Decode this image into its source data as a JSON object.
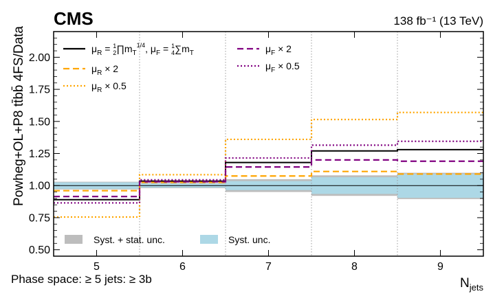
{
  "chart_data": {
    "type": "line",
    "title": "CMS",
    "lumi_label": "138 fb⁻¹ (13 TeV)",
    "ylabel": "Powheg+OL+P8 tt̄bb̄ 4FS/Data",
    "xlabel": "N",
    "xlabel_sub": "jets",
    "footnote": "Phase space:  ≥ 5 jets:  ≥ 3b",
    "categories": [
      "5",
      "6",
      "7",
      "8",
      "9"
    ],
    "x_edges": [
      4.5,
      5.5,
      6.5,
      7.5,
      8.5,
      9.5
    ],
    "ylim": [
      0.45,
      2.2
    ],
    "yticks": [
      0.5,
      0.75,
      1.0,
      1.25,
      1.5,
      1.75,
      2.0
    ],
    "ytick_labels": [
      "0.50",
      "0.75",
      "1.00",
      "1.25",
      "1.50",
      "1.75",
      "2.00"
    ],
    "grid": "vertical dotted lines at bin edges",
    "reference_line": 1.0,
    "bands": [
      {
        "name": "Syst. + stat. unc.",
        "color": "#bdbdbd",
        "low": [
          0.97,
          0.98,
          0.95,
          0.92,
          0.895
        ],
        "high": [
          1.03,
          1.02,
          1.05,
          1.08,
          1.1
        ]
      },
      {
        "name": "Syst. unc.",
        "color": "#add8e6",
        "low": [
          0.975,
          0.985,
          0.965,
          0.935,
          0.905
        ],
        "high": [
          1.025,
          1.015,
          1.035,
          1.065,
          1.09
        ]
      }
    ],
    "series": [
      {
        "name_main": "μ",
        "name_parts": [
          "R",
          " = ",
          "1",
          "2",
          "∏",
          "m",
          "T",
          "1/4",
          ", μ",
          "F",
          " = ",
          "1",
          "4",
          "∑",
          "m",
          "T"
        ],
        "style": "solid",
        "color": "#000000",
        "values": [
          0.89,
          1.035,
          1.18,
          1.27,
          1.28
        ]
      },
      {
        "name_main": "μ",
        "name_sub": "R",
        "name_suffix": " × 2",
        "style": "dashed",
        "color": "#ffa500",
        "values": [
          0.96,
          1.025,
          1.075,
          1.11,
          1.09
        ]
      },
      {
        "name_main": "μ",
        "name_sub": "R",
        "name_suffix": " × 0.5",
        "style": "dotted",
        "color": "#ffa500",
        "values": [
          0.755,
          1.085,
          1.36,
          1.515,
          1.57
        ]
      },
      {
        "name_main": "μ",
        "name_sub": "F",
        "name_suffix": " × 2",
        "style": "dashed",
        "color": "#800080",
        "values": [
          0.915,
          1.03,
          1.145,
          1.2,
          1.19
        ]
      },
      {
        "name_main": "μ",
        "name_sub": "F",
        "name_suffix": " × 0.5",
        "style": "dotted",
        "color": "#800080",
        "values": [
          0.865,
          1.045,
          1.215,
          1.315,
          1.345
        ]
      }
    ]
  }
}
